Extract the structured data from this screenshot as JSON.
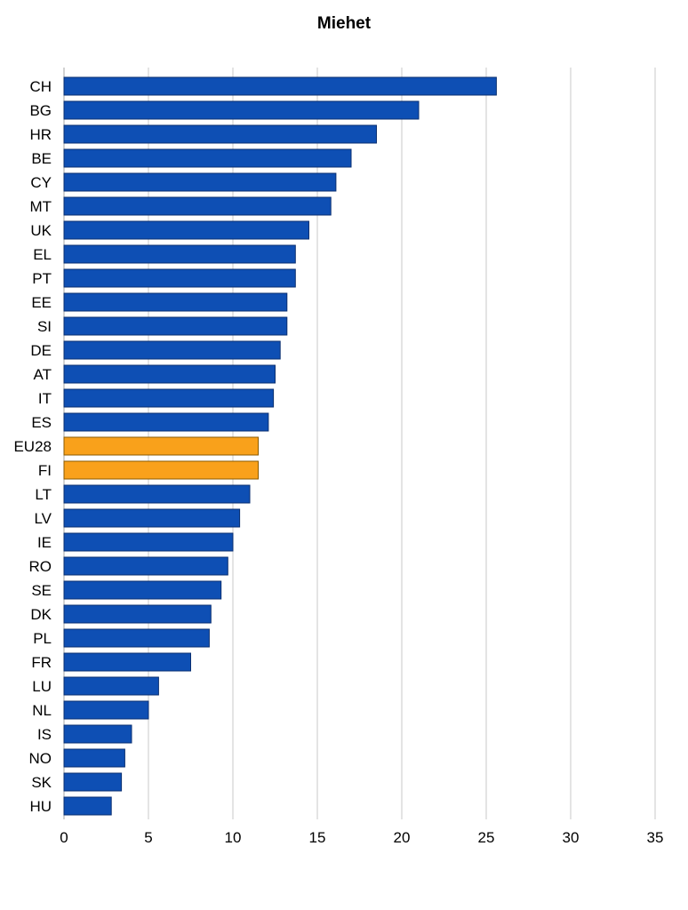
{
  "chart_data": {
    "type": "bar",
    "orientation": "horizontal",
    "title": "Miehet",
    "xlabel": "",
    "ylabel": "",
    "xlim": [
      0,
      35
    ],
    "x_ticks": [
      "0",
      "5",
      "10",
      "15",
      "20",
      "25",
      "30",
      "35"
    ],
    "grid": "vertical",
    "categories": [
      "CH",
      "BG",
      "HR",
      "BE",
      "CY",
      "MT",
      "UK",
      "EL",
      "PT",
      "EE",
      "SI",
      "DE",
      "AT",
      "IT",
      "ES",
      "EU28",
      "FI",
      "LT",
      "LV",
      "IE",
      "RO",
      "SE",
      "DK",
      "PL",
      "FR",
      "LU",
      "NL",
      "IS",
      "NO",
      "SK",
      "HU"
    ],
    "values": [
      25.6,
      21.0,
      18.5,
      17.0,
      16.1,
      15.8,
      14.5,
      13.7,
      13.7,
      13.2,
      13.2,
      12.8,
      12.5,
      12.4,
      12.1,
      11.5,
      11.5,
      11.0,
      10.4,
      10.0,
      9.7,
      9.3,
      8.7,
      8.6,
      7.5,
      5.6,
      5.0,
      4.0,
      3.6,
      3.4,
      2.8
    ],
    "highlighted": [
      "EU28",
      "FI"
    ],
    "colors": {
      "bar": "#0e4fb4",
      "highlight": "#f9a11b",
      "grid": "#c8c8c8"
    }
  }
}
